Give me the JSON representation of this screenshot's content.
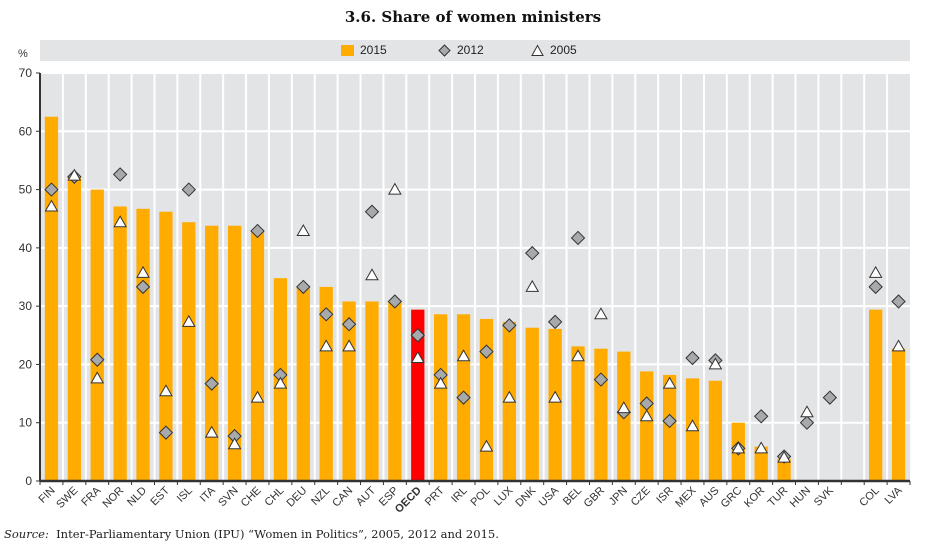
{
  "title": "3.6.  Share of women ministers",
  "source_label": "Source:",
  "source_text": "Inter-Parliamentary Union (IPU) “Women in Politics”, 2005, 2012 and 2015.",
  "colors": {
    "bar": "#ffab00",
    "highlight_bar": "#ff0000",
    "diamond_fill": "#a8a9ab",
    "triangle_fill": "#ffffff",
    "marker_stroke": "#333333",
    "plot_bg": "#e3e4e6",
    "grid": "#ffffff"
  },
  "chart_data": {
    "type": "bar",
    "title": "3.6.  Share of women ministers",
    "ylabel": "%",
    "xlabel": "",
    "ylim": [
      0,
      70
    ],
    "yticks": [
      0,
      10,
      20,
      30,
      40,
      50,
      60,
      70
    ],
    "grid": true,
    "legend_position": "top-center",
    "legend": [
      {
        "label": "2015",
        "marker": "bar"
      },
      {
        "label": "2012",
        "marker": "diamond"
      },
      {
        "label": "2005",
        "marker": "triangle"
      }
    ],
    "categories": [
      "FIN",
      "SWE",
      "FRA",
      "NOR",
      "NLD",
      "EST",
      "ISL",
      "ITA",
      "SVN",
      "CHE",
      "CHL",
      "DEU",
      "NZL",
      "CAN",
      "AUT",
      "ESP",
      "OECD",
      "PRT",
      "IRL",
      "POL",
      "LUX",
      "DNK",
      "USA",
      "BEL",
      "GBR",
      "JPN",
      "CZE",
      "ISR",
      "MEX",
      "AUS",
      "GRC",
      "KOR",
      "TUR",
      "HUN",
      "SVK",
      "",
      "COL",
      "LVA"
    ],
    "highlight_category": "OECD",
    "series": [
      {
        "name": "2015",
        "type": "bar",
        "values": [
          62.5,
          52.2,
          50.0,
          47.1,
          46.7,
          46.2,
          44.4,
          43.8,
          43.8,
          42.9,
          34.8,
          33.3,
          33.3,
          30.8,
          30.8,
          30.8,
          29.4,
          28.6,
          28.6,
          27.8,
          27.3,
          26.3,
          26.1,
          23.1,
          22.7,
          22.2,
          18.8,
          18.2,
          17.6,
          17.2,
          10.0,
          5.9,
          3.8,
          null,
          null,
          null,
          29.4,
          22.7
        ]
      },
      {
        "name": "2012",
        "type": "diamond",
        "values": [
          50.0,
          52.2,
          20.8,
          52.6,
          33.3,
          8.3,
          50.0,
          16.7,
          7.7,
          42.9,
          18.2,
          33.3,
          28.6,
          26.9,
          46.2,
          30.8,
          25.0,
          18.2,
          14.3,
          22.2,
          26.7,
          39.1,
          27.3,
          41.7,
          17.4,
          11.8,
          13.3,
          10.3,
          21.1,
          20.7,
          5.6,
          11.1,
          4.2,
          10.0,
          14.3,
          null,
          33.3,
          30.8
        ]
      },
      {
        "name": "2005",
        "type": "triangle",
        "values": [
          47.1,
          52.4,
          17.6,
          44.4,
          35.7,
          15.4,
          27.3,
          8.3,
          6.3,
          14.3,
          16.7,
          42.9,
          23.1,
          23.1,
          35.3,
          50.0,
          21.1,
          16.7,
          21.4,
          5.9,
          14.3,
          33.3,
          14.3,
          21.4,
          28.6,
          12.5,
          11.1,
          16.7,
          9.4,
          20.0,
          5.6,
          5.6,
          4.0,
          11.8,
          null,
          null,
          35.7,
          23.1
        ]
      }
    ]
  }
}
